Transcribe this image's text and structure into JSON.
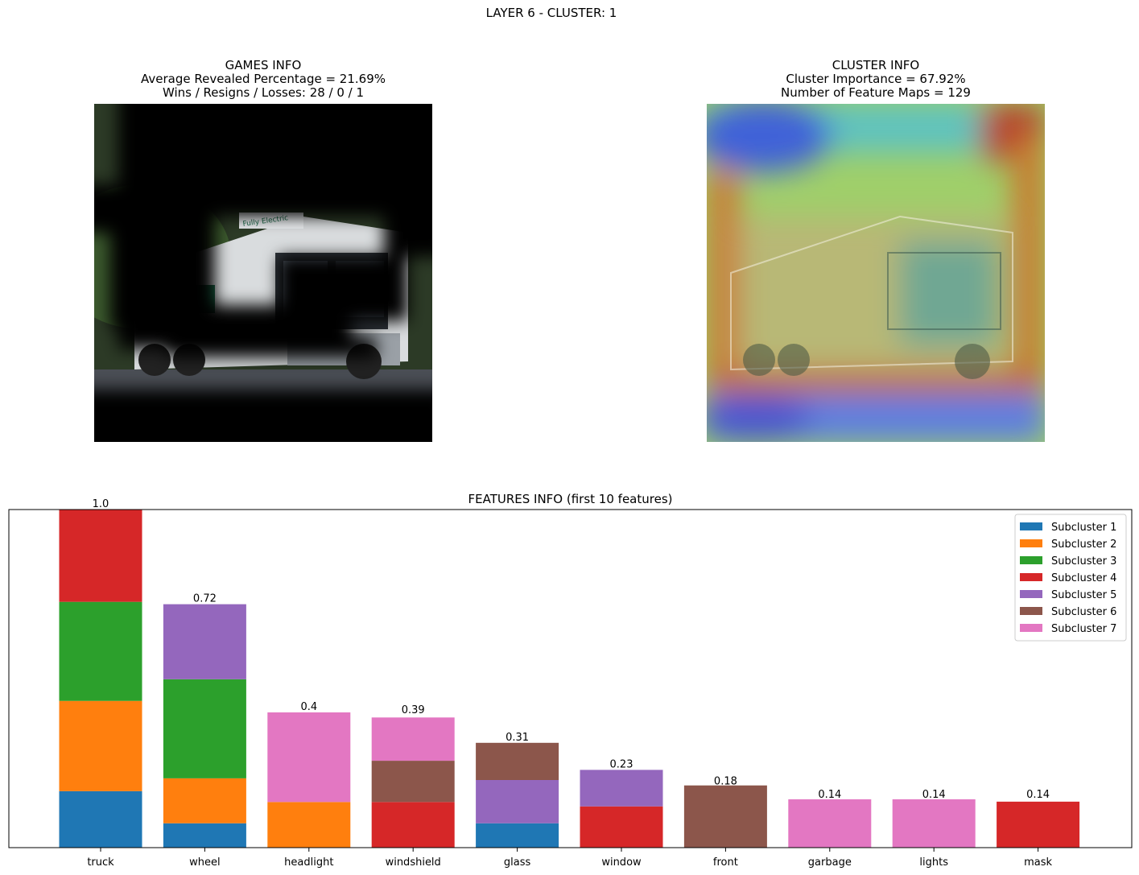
{
  "figure_title": "LAYER 6 - CLUSTER: 1",
  "games_panel": {
    "title": "GAMES INFO",
    "line1": "Average Revealed Percentage = 21.69%",
    "line2": "Wins / Resigns / Losses: 28 / 0 / 1",
    "image": "masked-truck-photo"
  },
  "cluster_panel": {
    "title": "CLUSTER INFO",
    "line1": "Cluster Importance = 67.92%",
    "line2": "Number of Feature Maps = 129",
    "image": "heatmap-overlay-truck-photo"
  },
  "photo_text": "Fully Electric",
  "chart_data": {
    "type": "bar",
    "stacked": true,
    "title": "FEATURES INFO (first 10 features)",
    "xlabel": "",
    "ylabel": "",
    "ylim": [
      0,
      1.0
    ],
    "axis_ticks_visible": false,
    "grid": false,
    "legend_position": "top-right",
    "categories": [
      "truck",
      "wheel",
      "headlight",
      "windshield",
      "glass",
      "window",
      "front",
      "garbage",
      "lights",
      "mask"
    ],
    "totals": [
      "1.0",
      "0.72",
      "0.4",
      "0.39",
      "0.31",
      "0.23",
      "0.18",
      "0.14",
      "0.14",
      "0.14"
    ],
    "series": [
      {
        "name": "Subcluster 1",
        "color": "#1f77b4",
        "values": [
          0.167,
          0.072,
          0,
          0,
          0.072,
          0,
          0,
          0,
          0,
          0
        ]
      },
      {
        "name": "Subcluster 2",
        "color": "#ff7f0e",
        "values": [
          0.267,
          0.133,
          0.135,
          0,
          0,
          0,
          0,
          0,
          0,
          0
        ]
      },
      {
        "name": "Subcluster 3",
        "color": "#2ca02c",
        "values": [
          0.293,
          0.293,
          0,
          0,
          0,
          0,
          0,
          0,
          0,
          0
        ]
      },
      {
        "name": "Subcluster 4",
        "color": "#d62728",
        "values": [
          0.273,
          0,
          0,
          0.135,
          0,
          0.122,
          0,
          0,
          0,
          0.136
        ]
      },
      {
        "name": "Subcluster 5",
        "color": "#9467bd",
        "values": [
          0,
          0.222,
          0,
          0,
          0.128,
          0.108,
          0,
          0,
          0,
          0
        ]
      },
      {
        "name": "Subcluster 6",
        "color": "#8c564b",
        "values": [
          0,
          0,
          0,
          0.122,
          0.11,
          0,
          0.184,
          0,
          0,
          0
        ]
      },
      {
        "name": "Subcluster 7",
        "color": "#e377c2",
        "values": [
          0,
          0,
          0.265,
          0.128,
          0,
          0,
          0,
          0.143,
          0.143,
          0
        ]
      }
    ]
  }
}
